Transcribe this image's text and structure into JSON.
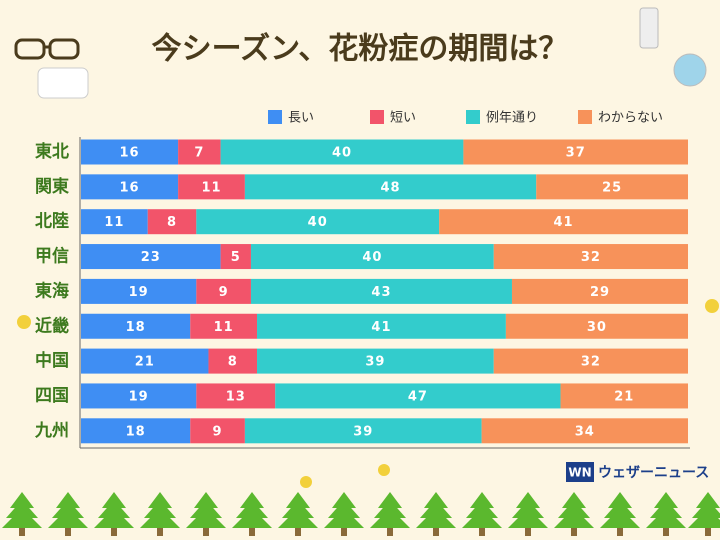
{
  "title": "今シーズン、花粉症の期間は？",
  "source": "ウェザーニュース",
  "logo": "WN",
  "chart_data": {
    "type": "stacked-bar-horizontal",
    "categories": [
      "東北",
      "関東",
      "北陸",
      "甲信",
      "東海",
      "近畿",
      "中国",
      "四国",
      "九州"
    ],
    "xlim": [
      0,
      100
    ],
    "legend": "top-right",
    "series": [
      {
        "name": "長い",
        "color": "#3f8ef3",
        "values": [
          16,
          16,
          11,
          23,
          19,
          18,
          21,
          19,
          18
        ]
      },
      {
        "name": "短い",
        "color": "#f2546a",
        "values": [
          7,
          11,
          8,
          5,
          9,
          11,
          8,
          13,
          9
        ]
      },
      {
        "name": "例年通り",
        "color": "#33cccc",
        "values": [
          40,
          48,
          40,
          40,
          43,
          41,
          39,
          47,
          39
        ]
      },
      {
        "name": "わからない",
        "color": "#f7925a",
        "values": [
          37,
          25,
          41,
          32,
          29,
          30,
          32,
          21,
          34
        ]
      }
    ]
  }
}
